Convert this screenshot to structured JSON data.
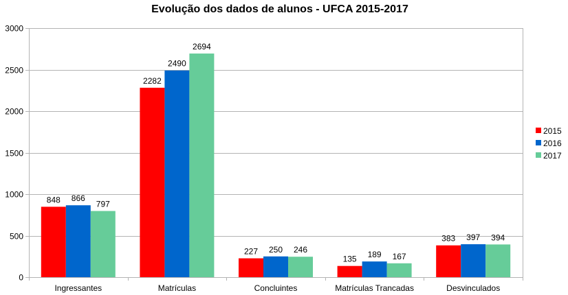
{
  "chart_data": {
    "type": "bar",
    "title": "Evolução dos dados de alunos - UFCA 2015-2017",
    "xlabel": "",
    "ylabel": "",
    "ylim": [
      0,
      3000
    ],
    "yticks": [
      "0",
      "500",
      "1000",
      "1500",
      "2000",
      "2500",
      "3000"
    ],
    "grid": true,
    "legend_position": "right",
    "categories": [
      "Ingressantes",
      "Matrículas",
      "Concluintes",
      "Matrículas Trancadas",
      "Desvinculados"
    ],
    "series": [
      {
        "name": "2015",
        "color": "#ff0000",
        "values": [
          848,
          2282,
          227,
          135,
          383
        ]
      },
      {
        "name": "2016",
        "color": "#0066cc",
        "values": [
          866,
          2490,
          250,
          189,
          397
        ]
      },
      {
        "name": "2017",
        "color": "#66cc99",
        "values": [
          797,
          2694,
          246,
          167,
          394
        ]
      }
    ]
  }
}
